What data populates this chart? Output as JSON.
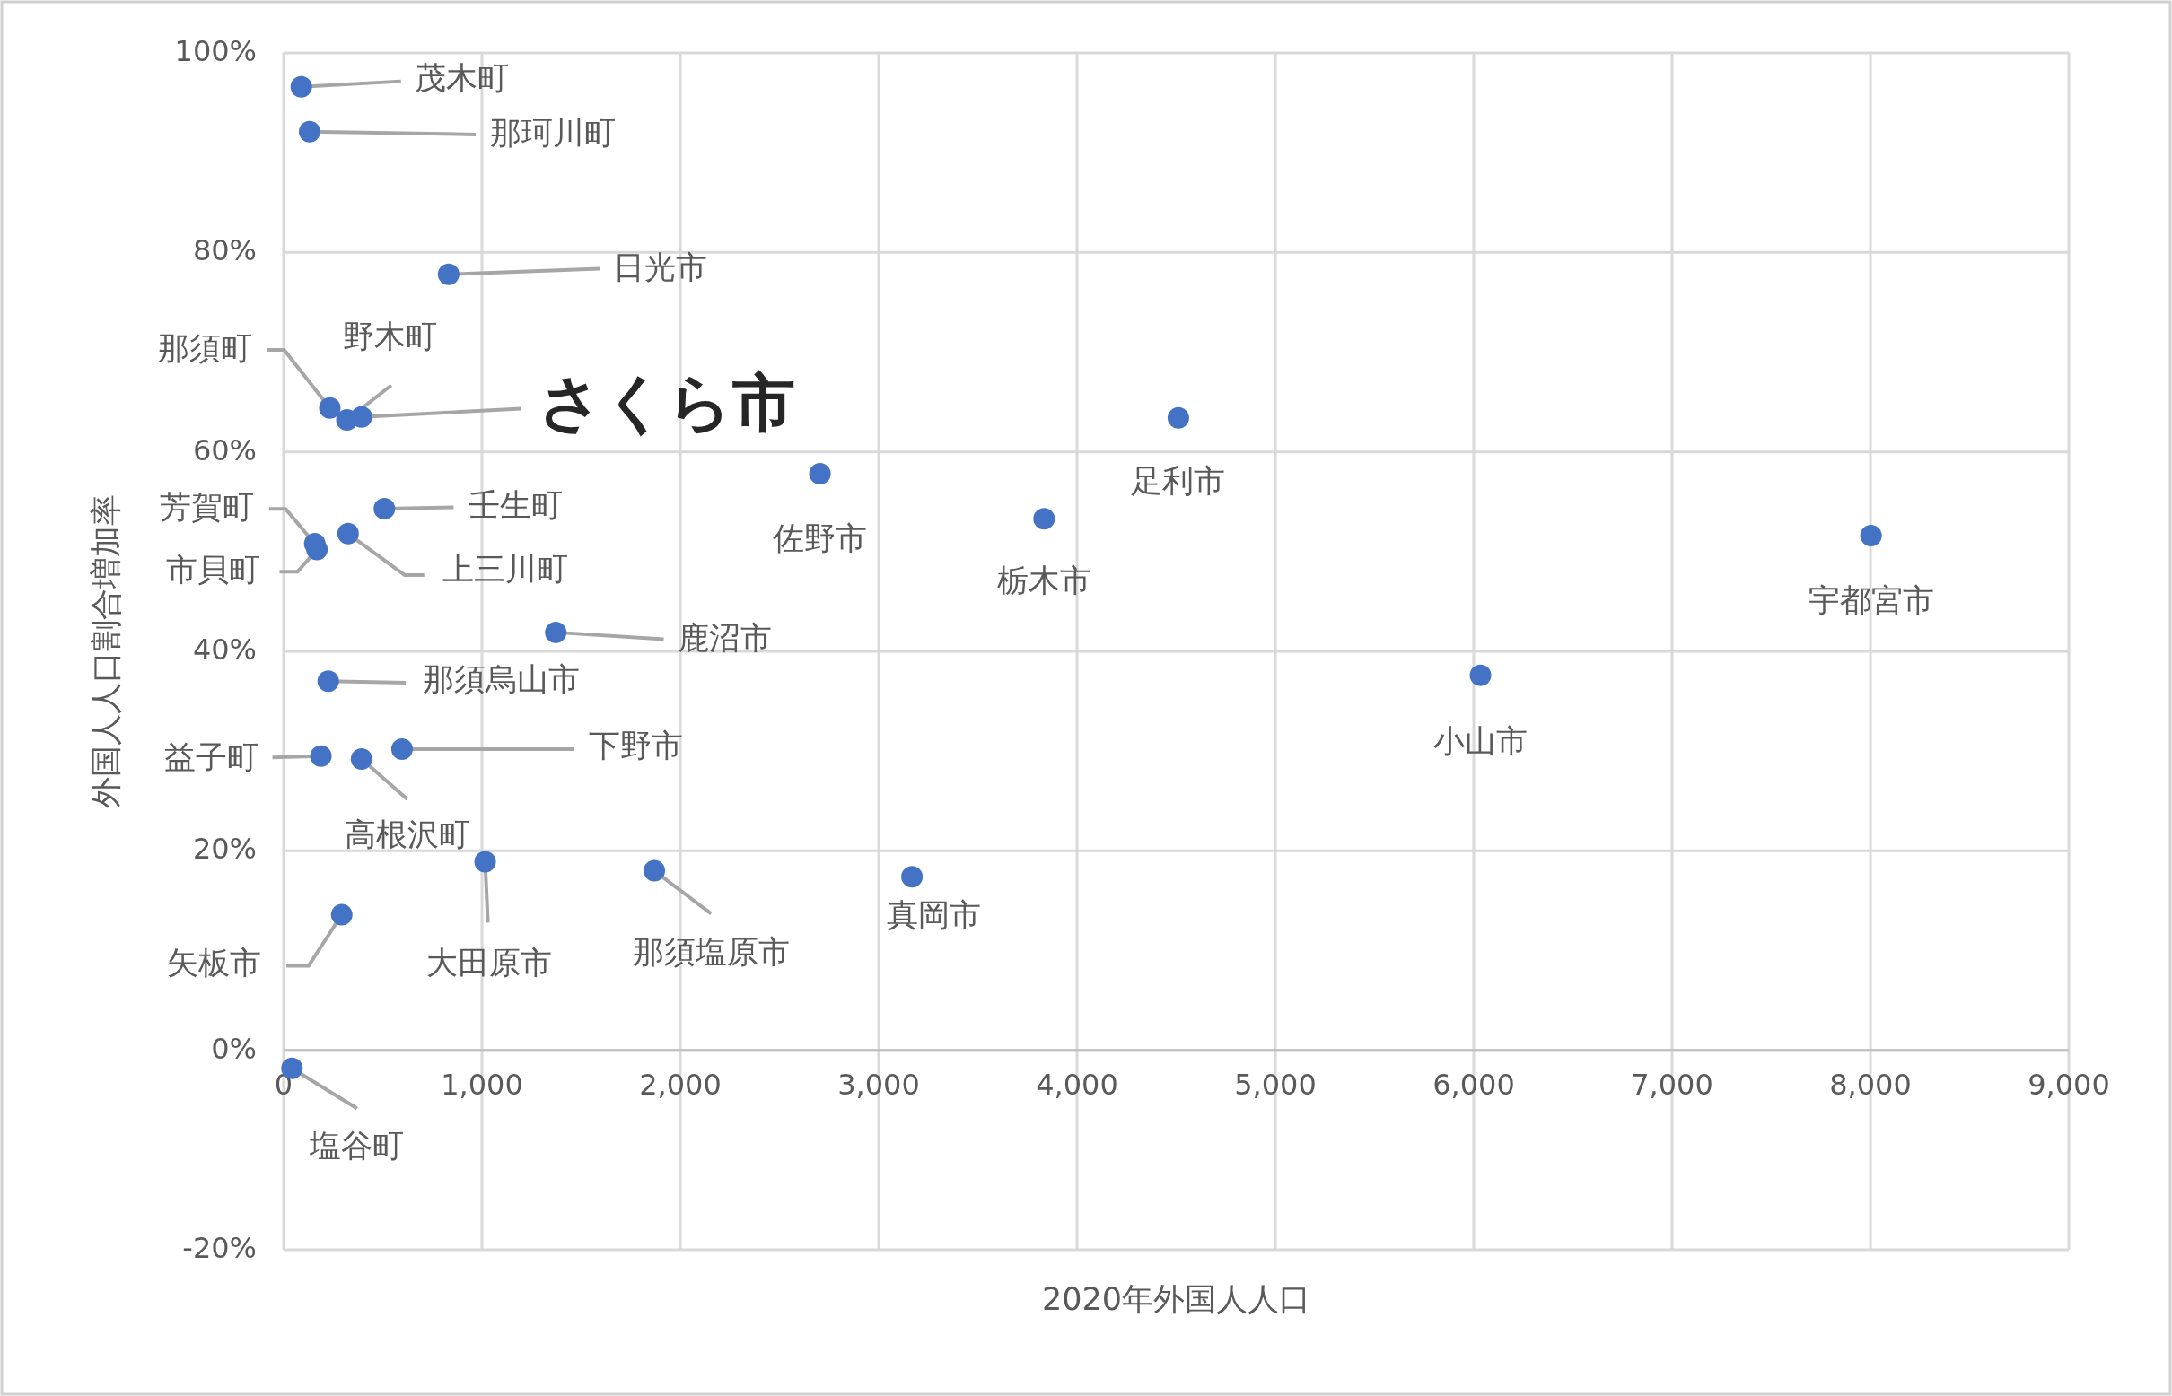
{
  "chart_data": {
    "type": "scatter",
    "xlabel": "2020年外国人人口",
    "ylabel": "外国人人口割合増加率",
    "xlim": [
      0,
      9000
    ],
    "ylim": [
      -20,
      100
    ],
    "xticks": [
      {
        "value": 0,
        "label": "0"
      },
      {
        "value": 1000,
        "label": "1,000"
      },
      {
        "value": 2000,
        "label": "2,000"
      },
      {
        "value": 3000,
        "label": "3,000"
      },
      {
        "value": 4000,
        "label": "4,000"
      },
      {
        "value": 5000,
        "label": "5,000"
      },
      {
        "value": 6000,
        "label": "6,000"
      },
      {
        "value": 7000,
        "label": "7,000"
      },
      {
        "value": 8000,
        "label": "8,000"
      },
      {
        "value": 9000,
        "label": "9,000"
      }
    ],
    "yticks": [
      {
        "value": -20,
        "label": "-20%"
      },
      {
        "value": 0,
        "label": "0%"
      },
      {
        "value": 20,
        "label": "20%"
      },
      {
        "value": 40,
        "label": "40%"
      },
      {
        "value": 60,
        "label": "60%"
      },
      {
        "value": 80,
        "label": "80%"
      },
      {
        "value": 100,
        "label": "100%"
      }
    ],
    "grid": true,
    "marker": "circle",
    "series": [
      {
        "color": "#4472c4",
        "x": [
          89,
          131,
          832,
          233,
          319,
          393,
          4511,
          2704,
          508,
          3834,
          8003,
          325,
          157,
          168,
          1372,
          225,
          6034,
          188,
          393,
          597,
          1016,
          1869,
          3168,
          293,
          42
        ],
        "values": [
          96.6,
          92.1,
          77.8,
          64.4,
          63.2,
          63.5,
          63.4,
          57.8,
          54.3,
          53.3,
          51.6,
          51.8,
          50.8,
          50.2,
          41.9,
          37.0,
          37.6,
          29.5,
          29.2,
          30.2,
          18.9,
          18.0,
          17.4,
          13.6,
          -1.8
        ]
      }
    ],
    "annotations": [
      {
        "text": "茂木町",
        "x": 89,
        "y": 96.6
      },
      {
        "text": "那珂川町",
        "x": 131,
        "y": 92.1
      },
      {
        "text": "日光市",
        "x": 832,
        "y": 77.8
      },
      {
        "text": "那須町",
        "x": 233,
        "y": 64.4
      },
      {
        "text": "野木町",
        "x": 319,
        "y": 63.2
      },
      {
        "text": "さくら市",
        "x": 393,
        "y": 63.5
      },
      {
        "text": "足利市",
        "x": 4511,
        "y": 63.4
      },
      {
        "text": "佐野市",
        "x": 2704,
        "y": 57.8
      },
      {
        "text": "壬生町",
        "x": 508,
        "y": 54.3
      },
      {
        "text": "栃木市",
        "x": 3834,
        "y": 53.3
      },
      {
        "text": "宇都宮市",
        "x": 8003,
        "y": 51.6
      },
      {
        "text": "上三川町",
        "x": 325,
        "y": 51.8
      },
      {
        "text": "芳賀町",
        "x": 157,
        "y": 50.8
      },
      {
        "text": "市貝町",
        "x": 168,
        "y": 50.2
      },
      {
        "text": "鹿沼市",
        "x": 1372,
        "y": 41.9
      },
      {
        "text": "那須烏山市",
        "x": 225,
        "y": 37.0
      },
      {
        "text": "小山市",
        "x": 6034,
        "y": 37.6
      },
      {
        "text": "益子町",
        "x": 188,
        "y": 29.5
      },
      {
        "text": "高根沢町",
        "x": 393,
        "y": 29.2
      },
      {
        "text": "下野市",
        "x": 597,
        "y": 30.2
      },
      {
        "text": "大田原市",
        "x": 1016,
        "y": 18.9
      },
      {
        "text": "那須塩原市",
        "x": 1869,
        "y": 18.0
      },
      {
        "text": "真岡市",
        "x": 3168,
        "y": 17.4
      },
      {
        "text": "矢板市",
        "x": 293,
        "y": 13.6
      },
      {
        "text": "塩谷町",
        "x": 42,
        "y": -1.8
      }
    ]
  }
}
